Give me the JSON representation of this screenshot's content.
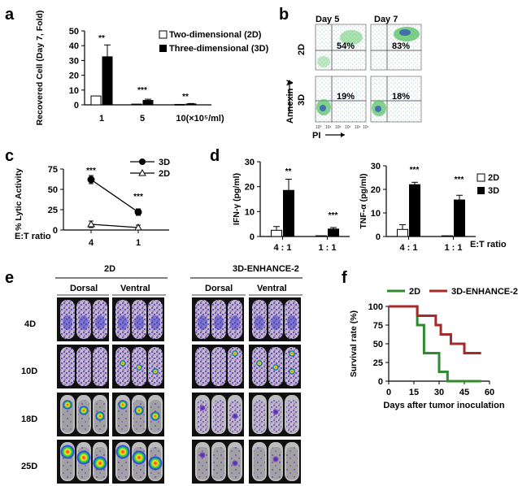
{
  "panels": {
    "a": {
      "letter": "a",
      "sig_labels": [
        "**",
        "***",
        "**"
      ],
      "legend": [
        "Two-dimensional (2D)",
        "Three-dimensional (3D)"
      ]
    },
    "b": {
      "letter": "b",
      "col_labels": [
        "Day 5",
        "Day 7"
      ],
      "row_labels": [
        "2D",
        "3D"
      ],
      "percentages": [
        "54%",
        "83%",
        "19%",
        "18%"
      ],
      "y_axis": "Annexin V",
      "x_axis": "PI",
      "tick_labels": [
        "10⁰",
        "10¹",
        "10²",
        "10³",
        "10⁴",
        "10⁵"
      ]
    },
    "c": {
      "letter": "c",
      "sig_labels": [
        "***",
        "***"
      ],
      "legend": [
        "3D",
        "2D"
      ],
      "et_label": "E:T ratio"
    },
    "d": {
      "letter": "d",
      "sig_labels_left": [
        "**",
        "***"
      ],
      "sig_labels_right": [
        "***",
        "***"
      ],
      "legend": [
        "2D",
        "3D"
      ],
      "et_label": "E:T ratio"
    },
    "e": {
      "letter": "e",
      "group_labels": [
        "2D",
        "3D-ENHANCE-2"
      ],
      "view_labels": [
        "Dorsal",
        "Ventral",
        "Dorsal",
        "Ventral"
      ],
      "day_labels": [
        "4D",
        "10D",
        "18D",
        "25D"
      ]
    },
    "f": {
      "letter": "f",
      "legend": [
        "2D",
        "3D-ENHANCE-2"
      ]
    }
  },
  "chart_data": [
    {
      "id": "a",
      "type": "bar",
      "categories": [
        "1",
        "5",
        "10(×10⁵/ml)"
      ],
      "series": [
        {
          "name": "Two-dimensional (2D)",
          "values": [
            6,
            0.5,
            0.3
          ],
          "errors": [
            0,
            0,
            0
          ]
        },
        {
          "name": "Three-dimensional (3D)",
          "values": [
            32.5,
            3,
            0.6
          ],
          "errors": [
            8,
            0.8,
            0.3
          ]
        }
      ],
      "ylabel": "Recovered Cell (Day 7, Fold)",
      "yticks": [
        0,
        10,
        20,
        30,
        40,
        50
      ],
      "ylim": [
        0,
        50
      ]
    },
    {
      "id": "c",
      "type": "line",
      "x": [
        "4",
        "1"
      ],
      "series": [
        {
          "name": "3D",
          "values": [
            62,
            22
          ],
          "errors": [
            5,
            4
          ]
        },
        {
          "name": "2D",
          "values": [
            7,
            3
          ],
          "errors": [
            4,
            3
          ]
        }
      ],
      "ylabel": "% Lytic Activity",
      "yticks": [
        0,
        25,
        50,
        75
      ],
      "ylim": [
        0,
        75
      ]
    },
    {
      "id": "d-left",
      "type": "bar",
      "categories": [
        "4 : 1",
        "1 : 1"
      ],
      "series": [
        {
          "name": "2D",
          "values": [
            2.5,
            0.3
          ],
          "errors": [
            1.5,
            0
          ]
        },
        {
          "name": "3D",
          "values": [
            18.5,
            3
          ],
          "errors": [
            4.5,
            0.6
          ]
        }
      ],
      "ylabel": "IFN-γ (pg/ml)",
      "yticks": [
        0,
        10,
        20,
        30
      ],
      "ylim": [
        0,
        30
      ]
    },
    {
      "id": "d-right",
      "type": "bar",
      "categories": [
        "4 : 1",
        "1 : 1"
      ],
      "series": [
        {
          "name": "2D",
          "values": [
            3,
            0.3
          ],
          "errors": [
            2,
            0
          ]
        },
        {
          "name": "3D",
          "values": [
            22,
            15.5
          ],
          "errors": [
            1,
            2
          ]
        }
      ],
      "ylabel": "TNF-α (pg/ml)",
      "yticks": [
        0,
        10,
        20,
        30
      ],
      "ylim": [
        0,
        30
      ]
    },
    {
      "id": "f",
      "type": "line",
      "step": true,
      "series": [
        {
          "name": "2D",
          "color": "#2e8b2e",
          "x": [
            0,
            17,
            17,
            21,
            21,
            30,
            30,
            35,
            35,
            55
          ],
          "values": [
            100,
            100,
            75,
            75,
            37.5,
            37.5,
            12.5,
            12.5,
            0,
            0
          ]
        },
        {
          "name": "3D-ENHANCE-2",
          "color": "#a52a2a",
          "x": [
            0,
            17,
            17,
            28,
            28,
            31,
            31,
            37,
            37,
            45,
            45,
            55
          ],
          "values": [
            100,
            100,
            87.5,
            87.5,
            75,
            75,
            62.5,
            62.5,
            50,
            50,
            37.5,
            37.5
          ]
        }
      ],
      "xlabel": "Days after tumor inoculation",
      "ylabel": "Survival rate (%)",
      "xticks": [
        0,
        15,
        30,
        45,
        60
      ],
      "yticks": [
        0,
        25,
        50,
        75,
        100
      ],
      "xlim": [
        0,
        60
      ],
      "ylim": [
        0,
        100
      ]
    }
  ]
}
